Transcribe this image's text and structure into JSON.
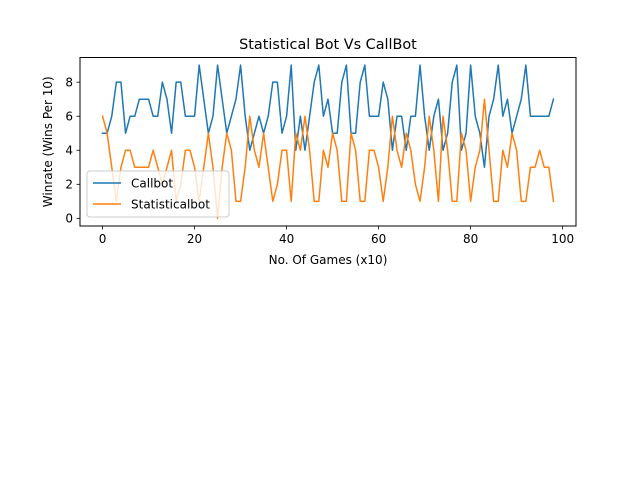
{
  "chart_data": {
    "type": "line",
    "title": "Statistical Bot Vs CallBot",
    "xlabel": "No. Of Games (x10)",
    "ylabel": "Winrate (Wins Per 10)",
    "xlim": [
      -4.9,
      102.9
    ],
    "ylim": [
      -0.45,
      9.45
    ],
    "xticks": [
      0,
      20,
      40,
      60,
      80,
      100
    ],
    "yticks": [
      0,
      2,
      4,
      6,
      8
    ],
    "grid": false,
    "legend_position": "lower-left",
    "series": [
      {
        "name": "Callbot",
        "color": "#1f77b4",
        "values": [
          5,
          5,
          6,
          8,
          8,
          5,
          6,
          6,
          7,
          7,
          7,
          6,
          6,
          8,
          7,
          5,
          8,
          8,
          6,
          6,
          6,
          9,
          7,
          5,
          6,
          9,
          7,
          5,
          6,
          7,
          9,
          6,
          4,
          5,
          6,
          5,
          6,
          8,
          8,
          5,
          6,
          9,
          4,
          6,
          4,
          6,
          8,
          9,
          6,
          7,
          5,
          5,
          8,
          9,
          5,
          5,
          8,
          9,
          6,
          6,
          6,
          8,
          7,
          4,
          6,
          6,
          4,
          6,
          6,
          9,
          6,
          4,
          6,
          7,
          4,
          5,
          8,
          9,
          4,
          5,
          9,
          6,
          5,
          3,
          6,
          7,
          9,
          6,
          7,
          5,
          6,
          7,
          9,
          6,
          6,
          6,
          6,
          6,
          7
        ]
      },
      {
        "name": "Statisticalbot",
        "color": "#ff7f0e",
        "values": [
          6,
          5,
          3,
          1,
          3,
          4,
          4,
          3,
          3,
          3,
          3,
          4,
          3,
          2,
          3,
          4,
          1,
          2,
          4,
          4,
          3,
          1,
          3,
          5,
          3,
          0,
          3,
          5,
          4,
          1,
          1,
          3,
          6,
          4,
          3,
          5,
          3,
          1,
          2,
          4,
          4,
          1,
          5,
          4,
          6,
          4,
          1,
          1,
          4,
          3,
          5,
          4,
          1,
          1,
          5,
          4,
          1,
          1,
          4,
          4,
          3,
          1,
          3,
          6,
          4,
          3,
          5,
          4,
          2,
          1,
          3,
          6,
          4,
          1,
          6,
          4,
          1,
          1,
          5,
          4,
          1,
          3,
          4,
          7,
          4,
          1,
          1,
          4,
          3,
          5,
          4,
          1,
          1,
          3,
          3,
          4,
          3,
          3,
          1
        ]
      }
    ]
  }
}
